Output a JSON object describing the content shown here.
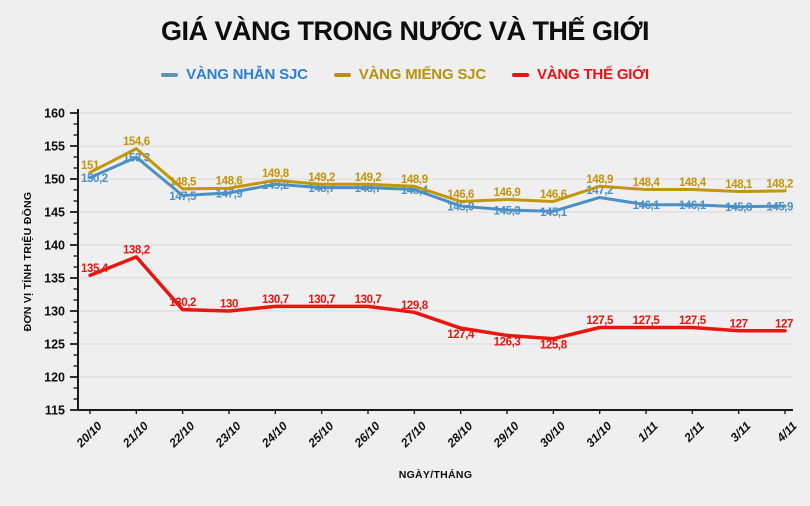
{
  "title": "GIÁ VÀNG TRONG NƯỚC VÀ THẾ GIỚI",
  "legend": [
    {
      "label": "VÀNG NHẪN SJC",
      "text_color": "#2E7FD2",
      "swatch_color": "#5E93B8"
    },
    {
      "label": "VÀNG MIẾNG SJC",
      "text_color": "#B9920B",
      "swatch_color": "#B9920B"
    },
    {
      "label": "VÀNG THẾ GIỚI",
      "text_color": "#EE1111",
      "swatch_color": "#EE1111"
    }
  ],
  "colors": {
    "background": "#EFEFEF",
    "gridline": "#D9D9D9",
    "axis": "#1A1A1A"
  },
  "chart_data": {
    "type": "line",
    "title": "GIÁ VÀNG TRONG NƯỚC VÀ THẾ GIỚI",
    "xlabel": "NGÀY/THÁNG",
    "ylabel": "ĐƠN VỊ TÍNH TRIỆU ĐỒNG",
    "ylim": [
      115,
      160
    ],
    "ytick_step": 5,
    "grid": true,
    "legend_position": "top",
    "categories": [
      "20/10",
      "21/10",
      "22/10",
      "23/10",
      "24/10",
      "25/10",
      "26/10",
      "27/10",
      "28/10",
      "29/10",
      "30/10",
      "31/10",
      "1/11",
      "2/11",
      "3/11",
      "4/11"
    ],
    "series": [
      {
        "name": "VÀNG NHẪN SJC",
        "color": "#4B90C5",
        "line_width": 3,
        "label_position": "below",
        "above_indices": [
          11
        ],
        "below_indices": [],
        "values": [
          150.2,
          153.3,
          147.5,
          147.9,
          149.2,
          148.7,
          148.7,
          148.4,
          145.9,
          145.3,
          145.1,
          147.2,
          146.1,
          146.1,
          145.8,
          145.9
        ],
        "labels": [
          "150,2",
          "153,3",
          "147,5",
          "147,9",
          "149,2",
          "148,7",
          "148,7",
          "148,4",
          "145,9",
          "145,3",
          "145,1",
          "147,2",
          "146,1",
          "146,1",
          "145,8",
          "145,9"
        ]
      },
      {
        "name": "VÀNG MIẾNG SJC",
        "color": "#C2950A",
        "line_width": 3,
        "label_position": "above",
        "above_indices": [],
        "below_indices": [],
        "values": [
          151,
          154.6,
          148.5,
          148.6,
          149.8,
          149.2,
          149.2,
          148.9,
          146.6,
          146.9,
          146.6,
          148.9,
          148.4,
          148.4,
          148.1,
          148.2
        ],
        "labels": [
          "151",
          "154,6",
          "148,5",
          "148,6",
          "149,8",
          "149,2",
          "149,2",
          "148,9",
          "146,6",
          "146,9",
          "146,6",
          "148,9",
          "148,4",
          "148,4",
          "148,1",
          "148,2"
        ]
      },
      {
        "name": "VÀNG THẾ GIỚI",
        "color": "#EA150F",
        "line_width": 3.5,
        "label_position": "above",
        "above_indices": [],
        "below_indices": [
          8,
          9,
          10
        ],
        "values": [
          135.4,
          138.2,
          130.2,
          130,
          130.7,
          130.7,
          130.7,
          129.8,
          127.4,
          126.3,
          125.8,
          127.5,
          127.5,
          127.5,
          127,
          127
        ],
        "labels": [
          "135,4",
          "138,2",
          "130,2",
          "130",
          "130,7",
          "130,7",
          "130,7",
          "129,8",
          "127,4",
          "126,3",
          "125,8",
          "127,5",
          "127,5",
          "127,5",
          "127",
          "127"
        ]
      }
    ]
  }
}
